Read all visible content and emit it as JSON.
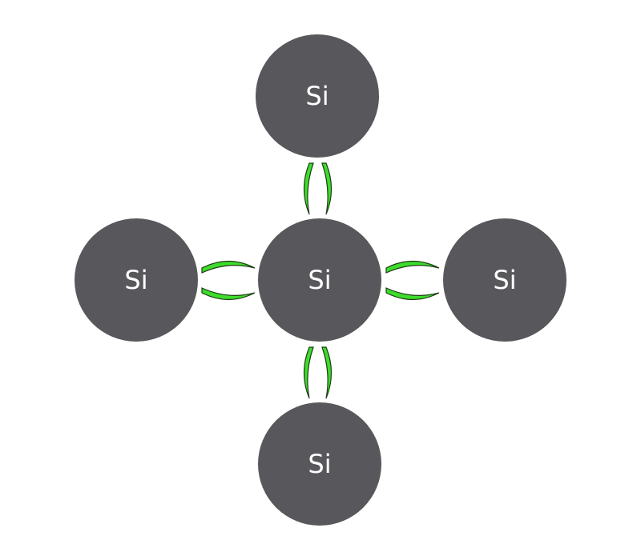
{
  "diagram": {
    "atoms": [
      {
        "id": "top",
        "label": "Si"
      },
      {
        "id": "left",
        "label": "Si"
      },
      {
        "id": "center",
        "label": "Si"
      },
      {
        "id": "right",
        "label": "Si"
      },
      {
        "id": "bottom",
        "label": "Si"
      }
    ],
    "bonds": [
      {
        "from": "center",
        "to": "top",
        "type": "covalent-pair"
      },
      {
        "from": "center",
        "to": "left",
        "type": "covalent-pair"
      },
      {
        "from": "center",
        "to": "right",
        "type": "covalent-pair"
      },
      {
        "from": "center",
        "to": "bottom",
        "type": "covalent-pair"
      }
    ],
    "colors": {
      "atom_fill": "#58575b",
      "atom_label": "#ffffff",
      "bond_fill": "#3ddc2c",
      "bond_outline": "#1f3d14",
      "background": "#ffffff"
    }
  }
}
